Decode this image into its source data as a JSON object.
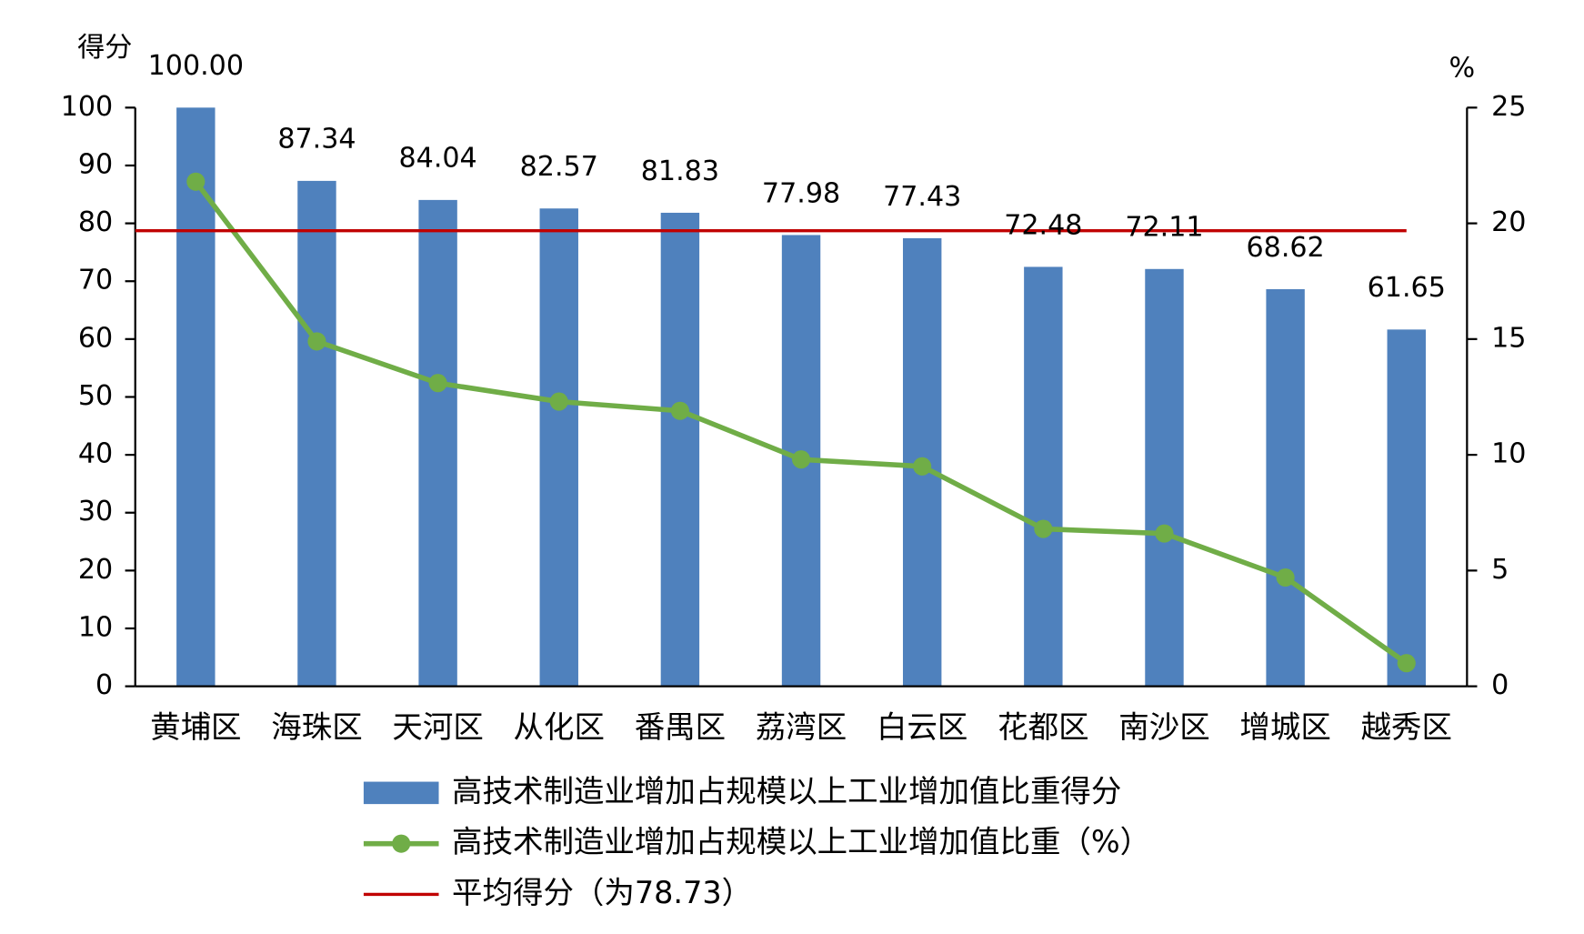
{
  "chart_data": {
    "type": "bar",
    "y_label": "得分",
    "y2_label": "%",
    "categories": [
      "黄埔区",
      "海珠区",
      "天河区",
      "从化区",
      "番禺区",
      "荔湾区",
      "白云区",
      "花都区",
      "南沙区",
      "增城区",
      "越秀区"
    ],
    "series": [
      {
        "name": "高技术制造业增加占规模以上工业增加值比重得分",
        "type": "bar",
        "color": "#4f81bd",
        "values": [
          100,
          87.34,
          84.04,
          82.57,
          81.83,
          77.98,
          77.43,
          72.48,
          72.11,
          68.62,
          61.65
        ],
        "value_labels": [
          "100.00",
          "87.34",
          "84.04",
          "82.57",
          "81.83",
          "77.98",
          "77.43",
          "72.48",
          "72.11",
          "68.62",
          "61.65"
        ]
      },
      {
        "name": "高技术制造业增加占规模以上工业增加值比重（%）",
        "type": "line",
        "axis": "y2",
        "color": "#70ad47",
        "values": [
          21.8,
          14.9,
          13.1,
          12.3,
          11.9,
          9.8,
          9.5,
          6.8,
          6.6,
          4.7,
          1.0
        ]
      }
    ],
    "average": {
      "name": "平均得分（为78.73）",
      "value": 78.73,
      "color": "#c00000"
    },
    "ylim": [
      0,
      100
    ],
    "yticks": [
      0,
      10,
      20,
      30,
      40,
      50,
      60,
      70,
      80,
      90,
      100
    ],
    "y2lim": [
      0,
      25
    ],
    "y2ticks": [
      0,
      5,
      10,
      15,
      20,
      25
    ]
  }
}
